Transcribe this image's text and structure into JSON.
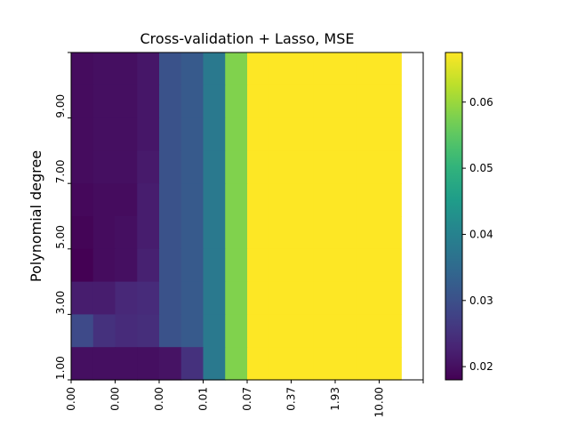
{
  "chart_data": {
    "type": "heatmap",
    "title": "Cross-validation + Lasso, MSE",
    "xlabel": "",
    "ylabel": "Polynomial degree",
    "x_tick_labels": [
      "0.00",
      "0.00",
      "0.00",
      "0.01",
      "0.07",
      "0.37",
      "1.93",
      "10.00"
    ],
    "y_tick_labels": [
      "1.00",
      "3.00",
      "5.00",
      "7.00",
      "9.00"
    ],
    "x_columns": 16,
    "y_rows": 10,
    "colorbar": {
      "colormap": "viridis",
      "min": 0.018,
      "max": 0.0675,
      "tick_values": [
        0.02,
        0.03,
        0.04,
        0.05,
        0.06
      ],
      "tick_labels": [
        "0.02",
        "0.03",
        "0.04",
        "0.05",
        "0.06"
      ]
    },
    "rows_note": "rows listed from top (highest degree) to bottom (lowest degree)",
    "values": [
      [
        0.0195,
        0.02,
        0.02,
        0.021,
        0.0305,
        0.032,
        0.038,
        0.058,
        0.0675,
        0.0675,
        0.0675,
        0.0675,
        0.0675,
        0.0675,
        0.0675,
        null
      ],
      [
        0.0195,
        0.02,
        0.02,
        0.021,
        0.0305,
        0.032,
        0.038,
        0.058,
        0.0675,
        0.0675,
        0.0675,
        0.0675,
        0.0675,
        0.0675,
        0.0675,
        null
      ],
      [
        0.0195,
        0.02,
        0.02,
        0.021,
        0.0305,
        0.032,
        0.038,
        0.058,
        0.0675,
        0.0675,
        0.0675,
        0.0675,
        0.0675,
        0.0675,
        0.0675,
        null
      ],
      [
        0.0195,
        0.02,
        0.02,
        0.0215,
        0.0305,
        0.032,
        0.038,
        0.058,
        0.0675,
        0.0675,
        0.0675,
        0.0675,
        0.0675,
        0.0675,
        0.0675,
        null
      ],
      [
        0.019,
        0.0195,
        0.0195,
        0.022,
        0.0305,
        0.032,
        0.038,
        0.058,
        0.0675,
        0.0675,
        0.0675,
        0.0675,
        0.0675,
        0.0675,
        0.0675,
        null
      ],
      [
        0.0185,
        0.0195,
        0.02,
        0.022,
        0.0305,
        0.032,
        0.038,
        0.058,
        0.0675,
        0.0675,
        0.0675,
        0.0675,
        0.0675,
        0.0675,
        0.0675,
        null
      ],
      [
        0.018,
        0.0195,
        0.02,
        0.0225,
        0.0305,
        0.032,
        0.038,
        0.058,
        0.0675,
        0.0675,
        0.0675,
        0.0675,
        0.0675,
        0.0675,
        0.0675,
        null
      ],
      [
        0.022,
        0.022,
        0.0235,
        0.024,
        0.0305,
        0.032,
        0.038,
        0.058,
        0.0675,
        0.0675,
        0.0675,
        0.0675,
        0.0675,
        0.0675,
        0.0675,
        null
      ],
      [
        0.029,
        0.025,
        0.024,
        0.0245,
        0.0305,
        0.032,
        0.038,
        0.058,
        0.0675,
        0.0675,
        0.0675,
        0.0675,
        0.0675,
        0.0675,
        0.0675,
        null
      ],
      [
        0.02,
        0.02,
        0.02,
        0.02,
        0.0205,
        0.025,
        0.038,
        0.058,
        0.0675,
        0.0675,
        0.0675,
        0.0675,
        0.0675,
        0.0675,
        0.0675,
        null
      ]
    ]
  }
}
